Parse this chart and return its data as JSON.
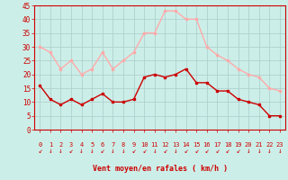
{
  "hours": [
    0,
    1,
    2,
    3,
    4,
    5,
    6,
    7,
    8,
    9,
    10,
    11,
    12,
    13,
    14,
    15,
    16,
    17,
    18,
    19,
    20,
    21,
    22,
    23
  ],
  "wind_avg": [
    16,
    11,
    9,
    11,
    9,
    11,
    13,
    10,
    10,
    11,
    19,
    20,
    19,
    20,
    22,
    17,
    17,
    14,
    14,
    11,
    10,
    9,
    5,
    5
  ],
  "wind_gust": [
    30,
    28,
    22,
    25,
    20,
    22,
    28,
    22,
    25,
    28,
    35,
    35,
    43,
    43,
    40,
    40,
    30,
    27,
    25,
    22,
    20,
    19,
    15,
    14
  ],
  "avg_color": "#cc0000",
  "gust_color": "#ffaaaa",
  "bg_color": "#cceee8",
  "grid_color": "#bbdddd",
  "xlabel": "Vent moyen/en rafales ( km/h )",
  "xlabel_color": "#cc0000",
  "tick_color": "#cc0000",
  "spine_color": "#cc0000",
  "ylim": [
    0,
    45
  ],
  "yticks": [
    0,
    5,
    10,
    15,
    20,
    25,
    30,
    35,
    40,
    45
  ],
  "arrow_chars": [
    "↙",
    "↓",
    "↓",
    "↙",
    "↓",
    "↓",
    "↙",
    "↓",
    "↓",
    "↙",
    "↙",
    "↓",
    "↙",
    "↓",
    "↙",
    "↙",
    "↙",
    "↙",
    "↙",
    "↙",
    "↓",
    "↓",
    "↓",
    "↓"
  ]
}
